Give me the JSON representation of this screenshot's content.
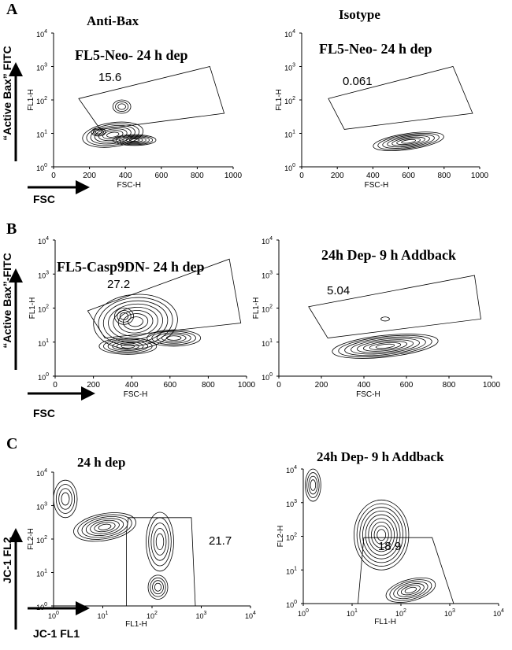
{
  "sections": [
    {
      "letter": "A",
      "y_arrow_label": "“Active Bax” FITC",
      "x_arrow_label": "FSC",
      "plots": [
        {
          "header": "Anti-Bax",
          "inset": "FL5-Neo- 24 h dep",
          "gate": 15.6,
          "x_label": "FSC-H",
          "y_label": "FL1-H",
          "xticks": [
            0,
            200,
            400,
            600,
            800,
            1000
          ],
          "yticks": {
            "base": "10",
            "exponents": [
              "0",
              "1",
              "2",
              "3",
              "4"
            ]
          }
        },
        {
          "header": "Isotype",
          "inset": "FL5-Neo- 24 h dep",
          "gate": 0.061,
          "x_label": "FSC-H",
          "y_label": "FL1-H",
          "xticks": [
            0,
            200,
            400,
            600,
            800,
            1000
          ],
          "yticks": {
            "base": "10",
            "exponents": [
              "0",
              "1",
              "2",
              "3",
              "4"
            ]
          }
        }
      ]
    },
    {
      "letter": "B",
      "y_arrow_label": "“Active Bax”-FITC",
      "x_arrow_label": "FSC",
      "plots": [
        {
          "inset": "FL5-Casp9DN- 24 h dep",
          "gate": 27.2,
          "x_label": "FSC-H",
          "y_label": "FL1-H",
          "xticks": [
            0,
            200,
            400,
            600,
            800,
            1000
          ],
          "yticks": {
            "base": "10",
            "exponents": [
              "0",
              "1",
              "2",
              "3",
              "4"
            ]
          }
        },
        {
          "inset": "24h Dep- 9 h Addback",
          "gate": 5.04,
          "x_label": "FSC-H",
          "y_label": "FL1-H",
          "xticks": [
            0,
            200,
            400,
            600,
            800,
            1000
          ],
          "yticks": {
            "base": "10",
            "exponents": [
              "0",
              "1",
              "2",
              "3",
              "4"
            ]
          }
        }
      ]
    },
    {
      "letter": "C",
      "y_arrow_label": "JC-1 FL2",
      "x_arrow_label": "JC-1 FL1",
      "plots": [
        {
          "header": "24 h dep",
          "gate": 21.7,
          "x_label": "FL1-H",
          "y_label": "FL2-H",
          "xticks": {
            "base": "10",
            "exponents": [
              "0",
              "1",
              "2",
              "3",
              "4"
            ]
          },
          "yticks": {
            "base": "10",
            "exponents": [
              "0",
              "1",
              "2",
              "3",
              "4"
            ]
          }
        },
        {
          "header": "24h Dep- 9 h Addback",
          "gate": 18.9,
          "x_label": "FL1-H",
          "y_label": "FL2-H",
          "xticks": {
            "base": "10",
            "exponents": [
              "0",
              "1",
              "2",
              "3",
              "4"
            ]
          },
          "yticks": {
            "base": "10",
            "exponents": [
              "0",
              "1",
              "2",
              "3",
              "4"
            ]
          }
        }
      ]
    }
  ]
}
